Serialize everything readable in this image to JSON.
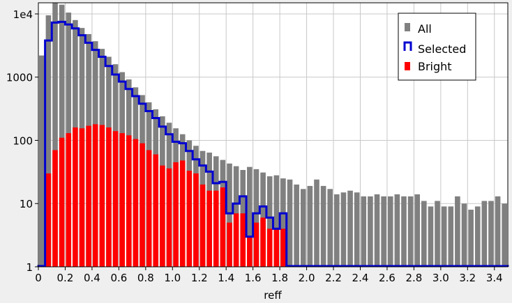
{
  "chart_data": {
    "type": "bar",
    "xlabel": "reff",
    "ylabel": "",
    "yscale": "log",
    "ylim": [
      1,
      15000
    ],
    "xlim": [
      0,
      3.5
    ],
    "bin_width": 0.05,
    "grid": true,
    "legend_position": "top-right",
    "x_ticks": [
      "0",
      "0.2",
      "0.4",
      "0.6",
      "0.8",
      "1.0",
      "1.2",
      "1.4",
      "1.6",
      "1.8",
      "2.0",
      "2.2",
      "2.4",
      "2.6",
      "2.8",
      "3.0",
      "3.2",
      "3.4"
    ],
    "y_ticks": [
      "1",
      "10",
      "100",
      "1000",
      "1e4"
    ],
    "x": [
      0.025,
      0.075,
      0.125,
      0.175,
      0.225,
      0.275,
      0.325,
      0.375,
      0.425,
      0.475,
      0.525,
      0.575,
      0.625,
      0.675,
      0.725,
      0.775,
      0.825,
      0.875,
      0.925,
      0.975,
      1.025,
      1.075,
      1.125,
      1.175,
      1.225,
      1.275,
      1.325,
      1.375,
      1.425,
      1.475,
      1.525,
      1.575,
      1.625,
      1.675,
      1.725,
      1.775,
      1.825,
      1.875,
      1.925,
      1.975,
      2.025,
      2.075,
      2.125,
      2.175,
      2.225,
      2.275,
      2.325,
      2.375,
      2.425,
      2.475,
      2.525,
      2.575,
      2.625,
      2.675,
      2.725,
      2.775,
      2.825,
      2.875,
      2.925,
      2.975,
      3.025,
      3.075,
      3.125,
      3.175,
      3.225,
      3.275,
      3.325,
      3.375,
      3.425,
      3.475
    ],
    "series": [
      {
        "name": "All",
        "color": "#808080",
        "style": "filled",
        "values": [
          2200,
          9500,
          15000,
          14000,
          10500,
          8000,
          6000,
          4800,
          3700,
          2800,
          2100,
          1600,
          1200,
          920,
          690,
          520,
          400,
          310,
          240,
          190,
          155,
          125,
          100,
          82,
          68,
          64,
          56,
          49,
          43,
          39,
          34,
          38,
          35,
          31,
          27,
          28,
          25,
          24,
          20,
          17,
          19,
          24,
          19,
          17,
          14,
          15,
          16,
          15,
          13,
          13,
          14,
          13,
          13,
          14,
          13,
          13,
          14,
          11,
          9,
          11,
          9,
          9,
          13,
          10,
          8,
          9,
          11,
          11,
          13,
          10
        ]
      },
      {
        "name": "Selected",
        "color": "#0000d0",
        "style": "step",
        "values": [
          1,
          3800,
          7300,
          7500,
          6800,
          5900,
          4600,
          3500,
          2700,
          2100,
          1500,
          1100,
          850,
          650,
          500,
          380,
          290,
          225,
          165,
          125,
          95,
          90,
          68,
          50,
          40,
          32,
          21,
          22,
          7,
          10,
          13,
          3,
          7,
          9,
          6,
          4,
          7,
          1,
          1,
          1,
          1,
          1,
          1,
          1,
          1,
          1,
          1,
          1,
          1,
          1,
          1,
          1,
          1,
          1,
          1,
          1,
          1,
          1,
          1,
          1,
          1,
          1,
          1,
          1,
          1,
          1,
          1,
          1,
          1,
          1
        ]
      },
      {
        "name": "Bright",
        "color": "#ff0000",
        "style": "filled",
        "values": [
          1,
          30,
          70,
          110,
          130,
          160,
          155,
          170,
          180,
          175,
          160,
          140,
          130,
          120,
          105,
          90,
          70,
          60,
          40,
          36,
          45,
          48,
          33,
          30,
          20,
          16,
          16,
          18,
          5,
          7,
          7,
          3,
          5,
          6,
          4,
          4,
          4,
          1,
          1,
          1,
          1,
          1,
          1,
          1,
          1,
          1,
          1,
          1,
          1,
          1,
          1,
          1,
          1,
          1,
          1,
          1,
          1,
          1,
          1,
          1,
          1,
          1,
          1,
          1,
          1,
          1,
          1,
          1,
          1,
          1
        ]
      }
    ]
  }
}
